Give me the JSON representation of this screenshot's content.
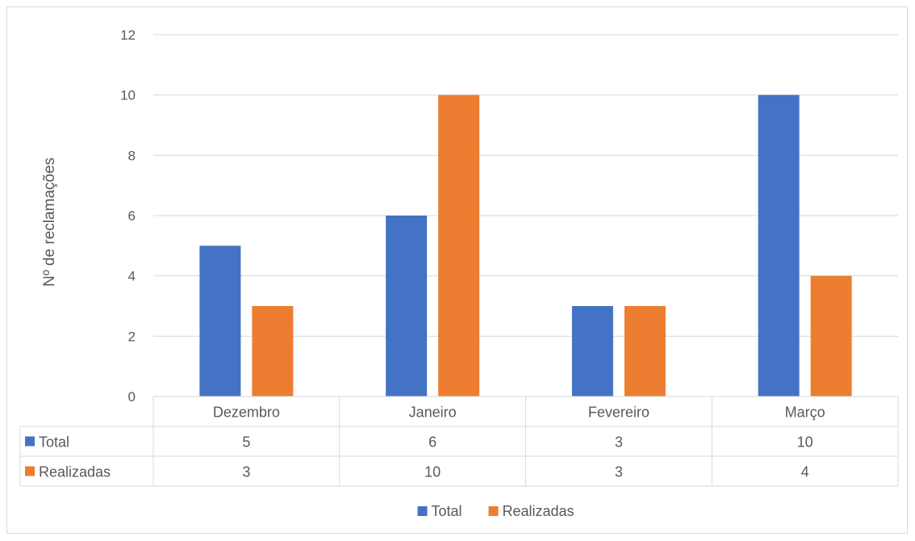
{
  "chart_data": {
    "type": "bar",
    "title": "",
    "xlabel": "",
    "ylabel": "Nº de reclamações",
    "ylim": [
      0,
      12
    ],
    "yticks": [
      0,
      2,
      4,
      6,
      8,
      10,
      12
    ],
    "categories": [
      "Dezembro",
      "Janeiro",
      "Fevereiro",
      "Março"
    ],
    "series": [
      {
        "name": "Total",
        "values": [
          5,
          6,
          3,
          10
        ],
        "color": "#4472C4"
      },
      {
        "name": "Realizadas",
        "values": [
          3,
          10,
          3,
          4
        ],
        "color": "#ED7D31"
      }
    ],
    "grid": true,
    "data_table": true,
    "legend_position": "bottom"
  }
}
